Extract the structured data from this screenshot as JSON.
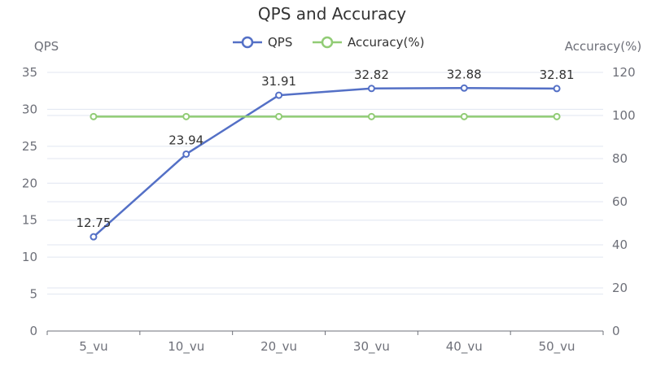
{
  "chart_data": {
    "type": "line",
    "title": "QPS and Accuracy",
    "categories": [
      "5_vu",
      "10_vu",
      "20_vu",
      "30_vu",
      "40_vu",
      "50_vu"
    ],
    "y_left": {
      "label": "QPS",
      "range": [
        0,
        35
      ],
      "ticks": [
        0,
        5,
        10,
        15,
        20,
        25,
        30,
        35
      ]
    },
    "y_right": {
      "label": "Accuracy(%)",
      "range": [
        0,
        120
      ],
      "ticks": [
        0,
        20,
        40,
        60,
        80,
        100,
        120
      ]
    },
    "grid": true,
    "legend_placement": "top-center",
    "series": [
      {
        "name": "QPS",
        "axis": "left",
        "color": "#5470c6",
        "values": [
          12.75,
          23.94,
          31.91,
          32.82,
          32.88,
          32.81
        ],
        "data_labels": [
          "12.75",
          "23.94",
          "31.91",
          "32.82",
          "32.88",
          "32.81"
        ]
      },
      {
        "name": "Accuracy(%)",
        "axis": "right",
        "color": "#91cc75",
        "values": [
          99.5,
          99.5,
          99.5,
          99.5,
          99.5,
          99.5
        ]
      }
    ]
  }
}
